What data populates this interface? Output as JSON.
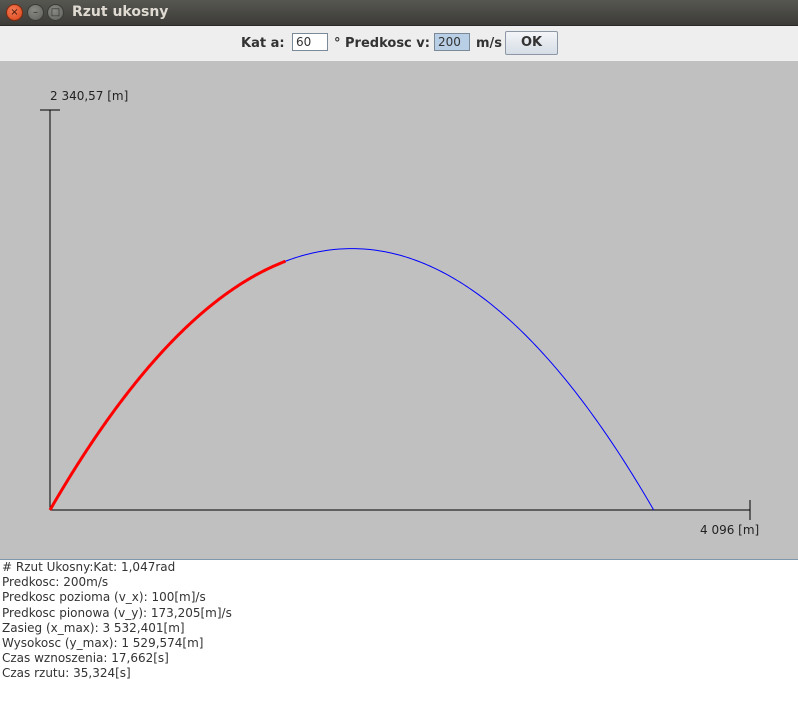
{
  "window": {
    "title": "Rzut ukosny",
    "close_icon": "×",
    "minimize_icon": "–",
    "maximize_icon": "□"
  },
  "toolbar": {
    "angle_label": "Kat a:",
    "angle_value": "60",
    "speed_label": "° Predkosc v:",
    "speed_value": "200",
    "unit_label": "m/s",
    "ok_label": "OK"
  },
  "plot": {
    "y_max_label": "2 340,57 [m]",
    "x_max_label": "4 096 [m]",
    "colors": {
      "background": "#c0c0c0",
      "trajectory": "#0000ff",
      "traveled": "#ff0000",
      "axes": "#000000"
    },
    "trajectory": {
      "angle_deg": 60,
      "speed": 200,
      "range": 3532.401,
      "max_height": 1529.574,
      "flight_time": 35.324,
      "x_axis_max": 4096,
      "y_axis_max": 2340.57,
      "progress_fraction": 0.39
    }
  },
  "output": {
    "lines": [
      "# Rzut Ukosny:Kat: 1,047rad",
      "Predkosc: 200m/s",
      "Predkosc pozioma (v_x): 100[m]/s",
      "Predkosc pionowa (v_y): 173,205[m]/s",
      "Zasieg (x_max): 3 532,401[m]",
      "Wysokosc (y_max): 1 529,574[m]",
      "Czas wznoszenia: 17,662[s]",
      "Czas rzutu: 35,324[s]"
    ]
  }
}
